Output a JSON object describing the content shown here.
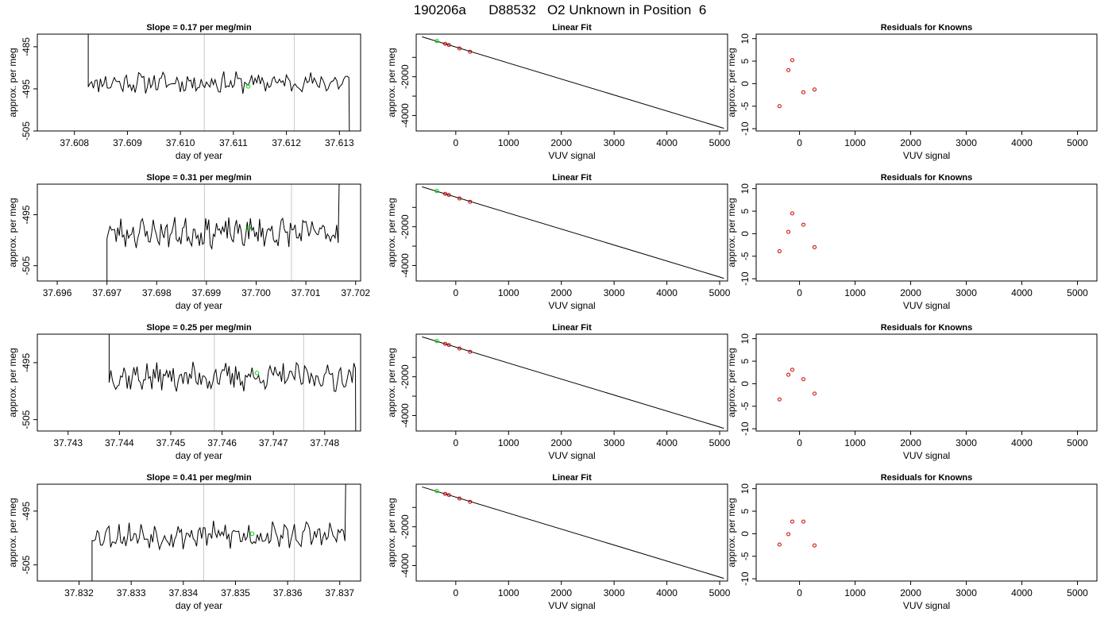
{
  "title": "190206a      D88532   O2 Unknown in Position  6",
  "colors": {
    "trace": "#000000",
    "marker": "#00dd00",
    "known": "#cc0000",
    "vline": "#c8c8c8",
    "frame": "#000000"
  },
  "chart_data": [
    {
      "type": "line",
      "panel": "timeseries",
      "row": 0,
      "title": "Slope =  0.17  per meg/min",
      "xlabel": "day of year",
      "ylabel": "approx. per meg",
      "xlim": [
        37.6073,
        37.6134
      ],
      "ylim": [
        -505,
        -482
      ],
      "xticks": [
        37.608,
        37.609,
        37.61,
        37.611,
        37.612,
        37.613
      ],
      "xtick_decimals": 3,
      "yticks": [
        -505,
        -495,
        -485
      ],
      "vlines": [
        37.61045,
        37.61215
      ],
      "start": 37.60826,
      "end": 37.61318,
      "base": -493.5,
      "amp": 2.0,
      "seed": 11,
      "edge_start_y": -479,
      "edge_end_y": -512,
      "marker": {
        "x": 37.61128,
        "y": -494.4
      }
    },
    {
      "type": "line",
      "panel": "timeseries",
      "row": 1,
      "title": "Slope =  0.31  per meg/min",
      "xlabel": "day of year",
      "ylabel": "approx. per meg",
      "xlim": [
        37.6956,
        37.7021
      ],
      "ylim": [
        -508,
        -489
      ],
      "xticks": [
        37.696,
        37.697,
        37.698,
        37.699,
        37.7,
        37.701,
        37.702
      ],
      "xtick_decimals": 3,
      "yticks": [
        -505,
        -495
      ],
      "vlines": [
        37.69896,
        37.70071
      ],
      "start": 37.697,
      "end": 37.70165,
      "base": -498.5,
      "amp": 2.3,
      "seed": 23,
      "edge_start_y": -509,
      "edge_end_y": -487,
      "marker": {
        "x": 37.69985,
        "y": -497.6
      }
    },
    {
      "type": "line",
      "panel": "timeseries",
      "row": 2,
      "title": "Slope =  0.25  per meg/min",
      "xlabel": "day of year",
      "ylabel": "approx. per meg",
      "xlim": [
        37.7424,
        37.7487
      ],
      "ylim": [
        -507,
        -490
      ],
      "xticks": [
        37.743,
        37.744,
        37.745,
        37.746,
        37.747,
        37.748
      ],
      "xtick_decimals": 3,
      "yticks": [
        -505,
        -495
      ],
      "vlines": [
        37.74585,
        37.74759
      ],
      "start": 37.7438,
      "end": 37.7486,
      "base": -497.5,
      "amp": 2.0,
      "seed": 37,
      "edge_start_y": -489,
      "edge_end_y": -509,
      "marker": {
        "x": 37.74668,
        "y": -496.8
      }
    },
    {
      "type": "line",
      "panel": "timeseries",
      "row": 3,
      "title": "Slope =  0.41  per meg/min",
      "xlabel": "day of year",
      "ylabel": "approx. per meg",
      "xlim": [
        37.8312,
        37.8374
      ],
      "ylim": [
        -508,
        -490
      ],
      "xticks": [
        37.832,
        37.833,
        37.834,
        37.835,
        37.836,
        37.837
      ],
      "xtick_decimals": 3,
      "yticks": [
        -505,
        -495
      ],
      "vlines": [
        37.83439,
        37.83613
      ],
      "start": 37.83225,
      "end": 37.8371,
      "base": -499.5,
      "amp": 2.0,
      "seed": 53,
      "edge_start_y": -510,
      "edge_end_y": -489,
      "marker": {
        "x": 37.83532,
        "y": -499.2
      }
    },
    {
      "type": "scatter",
      "panel": "linear",
      "row": 0,
      "title": "Linear Fit",
      "xlabel": "VUV signal",
      "ylabel": "approx. per meg",
      "xlim": [
        -750,
        5150
      ],
      "ylim": [
        -4800,
        200
      ],
      "xticks": [
        0,
        1000,
        2000,
        3000,
        4000,
        5000
      ],
      "yticks": [
        -4000,
        -3000,
        -2000,
        -1000
      ],
      "ytick_labels": [
        "-4000",
        "",
        "-2000",
        ""
      ],
      "fit_line": {
        "x": [
          -640,
          5080
        ],
        "y": [
          60,
          -4660
        ]
      },
      "knowns": {
        "x": [
          -200,
          -130,
          70,
          270
        ],
        "y": [
          -300,
          -360,
          -540,
          -710
        ]
      },
      "unknown": {
        "x": -360,
        "y": -150
      }
    },
    {
      "type": "scatter",
      "panel": "linear",
      "row": 1,
      "title": "Linear Fit",
      "xlabel": "VUV signal",
      "ylabel": "approx. per meg",
      "xlim": [
        -750,
        5150
      ],
      "ylim": [
        -4800,
        200
      ],
      "xticks": [
        0,
        1000,
        2000,
        3000,
        4000,
        5000
      ],
      "yticks": [
        -4000,
        -3000,
        -2000,
        -1000
      ],
      "ytick_labels": [
        "-4000",
        "",
        "-2000",
        ""
      ],
      "fit_line": {
        "x": [
          -640,
          5080
        ],
        "y": [
          60,
          -4660
        ]
      },
      "knowns": {
        "x": [
          -200,
          -130,
          70,
          270
        ],
        "y": [
          -300,
          -360,
          -540,
          -710
        ]
      },
      "unknown": {
        "x": -360,
        "y": -150
      }
    },
    {
      "type": "scatter",
      "panel": "linear",
      "row": 2,
      "title": "Linear Fit",
      "xlabel": "VUV signal",
      "ylabel": "approx. per meg",
      "xlim": [
        -750,
        5150
      ],
      "ylim": [
        -4800,
        200
      ],
      "xticks": [
        0,
        1000,
        2000,
        3000,
        4000,
        5000
      ],
      "yticks": [
        -4000,
        -3000,
        -2000,
        -1000
      ],
      "ytick_labels": [
        "-4000",
        "",
        "-2000",
        ""
      ],
      "fit_line": {
        "x": [
          -640,
          5080
        ],
        "y": [
          60,
          -4660
        ]
      },
      "knowns": {
        "x": [
          -200,
          -130,
          70,
          270
        ],
        "y": [
          -300,
          -360,
          -540,
          -710
        ]
      },
      "unknown": {
        "x": -360,
        "y": -150
      }
    },
    {
      "type": "scatter",
      "panel": "linear",
      "row": 3,
      "title": "Linear Fit",
      "xlabel": "VUV signal",
      "ylabel": "approx. per meg",
      "xlim": [
        -750,
        5150
      ],
      "ylim": [
        -4800,
        200
      ],
      "xticks": [
        0,
        1000,
        2000,
        3000,
        4000,
        5000
      ],
      "yticks": [
        -4000,
        -3000,
        -2000,
        -1000
      ],
      "ytick_labels": [
        "-4000",
        "",
        "-2000",
        ""
      ],
      "fit_line": {
        "x": [
          -640,
          5080
        ],
        "y": [
          60,
          -4660
        ]
      },
      "knowns": {
        "x": [
          -200,
          -130,
          70,
          270
        ],
        "y": [
          -300,
          -360,
          -540,
          -710
        ]
      },
      "unknown": {
        "x": -360,
        "y": -150
      }
    },
    {
      "type": "scatter",
      "panel": "residuals",
      "row": 0,
      "title": "Residuals for Knowns",
      "xlabel": "VUV signal",
      "ylabel": "approx. per meg",
      "xlim": [
        -780,
        5350
      ],
      "ylim": [
        -10.5,
        11
      ],
      "xticks": [
        0,
        1000,
        2000,
        3000,
        4000,
        5000
      ],
      "yticks": [
        -10,
        -5,
        0,
        5,
        10
      ],
      "points": {
        "x": [
          -360,
          -200,
          -130,
          70,
          270
        ],
        "y": [
          -5.0,
          3.0,
          5.2,
          -1.9,
          -1.3
        ]
      }
    },
    {
      "type": "scatter",
      "panel": "residuals",
      "row": 1,
      "title": "Residuals for Knowns",
      "xlabel": "VUV signal",
      "ylabel": "approx. per meg",
      "xlim": [
        -780,
        5350
      ],
      "ylim": [
        -10.5,
        11
      ],
      "xticks": [
        0,
        1000,
        2000,
        3000,
        4000,
        5000
      ],
      "yticks": [
        -10,
        -5,
        0,
        5,
        10
      ],
      "points": {
        "x": [
          -360,
          -200,
          -130,
          70,
          270
        ],
        "y": [
          -3.9,
          0.4,
          4.5,
          2.0,
          -3.0
        ]
      }
    },
    {
      "type": "scatter",
      "panel": "residuals",
      "row": 2,
      "title": "Residuals for Knowns",
      "xlabel": "VUV signal",
      "ylabel": "approx. per meg",
      "xlim": [
        -780,
        5350
      ],
      "ylim": [
        -10.5,
        11
      ],
      "xticks": [
        0,
        1000,
        2000,
        3000,
        4000,
        5000
      ],
      "yticks": [
        -10,
        -5,
        0,
        5,
        10
      ],
      "points": {
        "x": [
          -360,
          -200,
          -130,
          70,
          270
        ],
        "y": [
          -3.5,
          2.0,
          3.1,
          1.0,
          -2.2
        ]
      }
    },
    {
      "type": "scatter",
      "panel": "residuals",
      "row": 3,
      "title": "Residuals for Knowns",
      "xlabel": "VUV signal",
      "ylabel": "approx. per meg",
      "xlim": [
        -780,
        5350
      ],
      "ylim": [
        -10.5,
        11
      ],
      "xticks": [
        0,
        1000,
        2000,
        3000,
        4000,
        5000
      ],
      "yticks": [
        -10,
        -5,
        0,
        5,
        10
      ],
      "points": {
        "x": [
          -360,
          -200,
          -130,
          70,
          270
        ],
        "y": [
          -2.4,
          -0.1,
          2.7,
          2.7,
          -2.6
        ]
      }
    }
  ]
}
